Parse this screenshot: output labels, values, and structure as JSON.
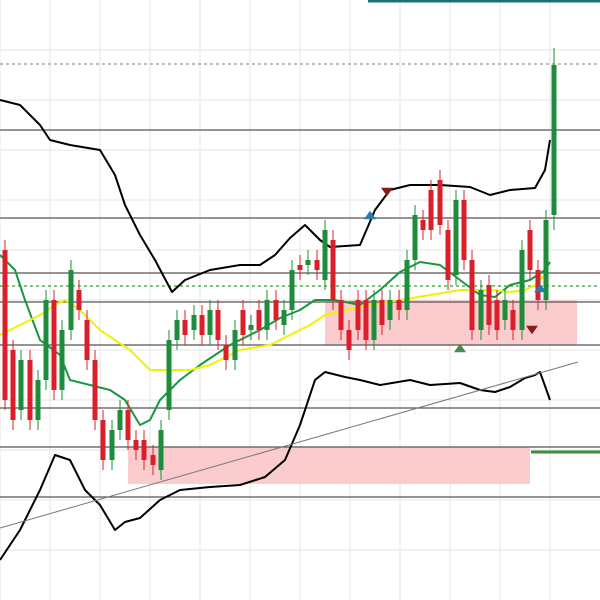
{
  "chart_data": {
    "type": "candlestick",
    "xlim": [
      0,
      600
    ],
    "ylim": [
      0,
      600
    ],
    "xticks": [
      0,
      50,
      100,
      150,
      200,
      250,
      300,
      350,
      400,
      450,
      500,
      550
    ],
    "yticks": [
      50,
      100,
      150,
      200,
      250,
      300,
      350,
      400,
      450,
      500,
      550
    ],
    "grid": true,
    "up_color": "#1e8c3a",
    "down_color": "#d9202a",
    "x": [
      5,
      13,
      21,
      30,
      38,
      46,
      54,
      62,
      71,
      79,
      87,
      95,
      103,
      112,
      120,
      128,
      136,
      144,
      153,
      161,
      169,
      177,
      185,
      194,
      202,
      210,
      218,
      226,
      235,
      243,
      251,
      259,
      267,
      276,
      284,
      292,
      300,
      308,
      317,
      325,
      333,
      341,
      349,
      358,
      366,
      374,
      382,
      390,
      399,
      407,
      415,
      423,
      431,
      440,
      448,
      456,
      464,
      472,
      481,
      489,
      497,
      505,
      513,
      522,
      530,
      538,
      546,
      554
    ],
    "open": [
      350,
      250,
      190,
      240,
      180,
      220,
      300,
      210,
      270,
      310,
      280,
      240,
      180,
      140,
      170,
      190,
      160,
      160,
      145,
      130,
      190,
      260,
      280,
      270,
      285,
      265,
      290,
      255,
      240,
      290,
      270,
      290,
      270,
      300,
      275,
      290,
      335,
      335,
      340,
      320,
      360,
      300,
      270,
      300,
      300,
      260,
      300,
      280,
      300,
      290,
      340,
      380,
      410,
      420,
      370,
      325,
      400,
      340,
      270,
      315,
      300,
      280,
      290,
      270,
      370,
      330,
      300,
      385
    ],
    "high": [
      360,
      260,
      250,
      250,
      230,
      310,
      310,
      280,
      340,
      320,
      290,
      250,
      190,
      180,
      200,
      200,
      170,
      170,
      155,
      180,
      270,
      290,
      290,
      295,
      295,
      300,
      300,
      265,
      280,
      300,
      285,
      300,
      310,
      310,
      300,
      340,
      345,
      350,
      350,
      380,
      370,
      310,
      280,
      310,
      310,
      310,
      310,
      310,
      310,
      350,
      395,
      390,
      420,
      430,
      380,
      410,
      410,
      350,
      320,
      325,
      310,
      310,
      300,
      360,
      380,
      340,
      390,
      552
    ],
    "low": [
      190,
      170,
      180,
      170,
      170,
      210,
      200,
      200,
      260,
      280,
      230,
      170,
      130,
      130,
      160,
      150,
      140,
      130,
      125,
      120,
      180,
      250,
      255,
      260,
      255,
      255,
      250,
      230,
      230,
      255,
      260,
      260,
      260,
      270,
      265,
      280,
      320,
      325,
      320,
      310,
      290,
      260,
      240,
      260,
      250,
      250,
      265,
      270,
      280,
      280,
      330,
      360,
      360,
      365,
      310,
      315,
      330,
      260,
      260,
      265,
      260,
      270,
      260,
      260,
      320,
      290,
      290,
      370
    ],
    "close": [
      200,
      180,
      240,
      180,
      220,
      300,
      210,
      270,
      330,
      290,
      240,
      180,
      140,
      170,
      190,
      160,
      150,
      140,
      135,
      170,
      260,
      280,
      265,
      285,
      265,
      290,
      260,
      240,
      270,
      265,
      275,
      270,
      300,
      280,
      290,
      330,
      330,
      340,
      330,
      370,
      300,
      270,
      250,
      270,
      260,
      300,
      275,
      300,
      290,
      340,
      385,
      370,
      370,
      375,
      320,
      400,
      340,
      270,
      310,
      275,
      270,
      300,
      270,
      350,
      330,
      300,
      380,
      535
    ],
    "zones": [
      {
        "x": [
          128,
          530
        ],
        "y": [
          116,
          153
        ],
        "color": "#f9c6c9"
      },
      {
        "x": [
          325,
          577
        ],
        "y": [
          255,
          300
        ],
        "color": "#f9c6c9"
      }
    ],
    "levels": [
      {
        "value": 536,
        "color": "#999999",
        "style": "dashed"
      },
      {
        "value": 470,
        "color": "#555555",
        "style": "solid"
      },
      {
        "value": 382,
        "color": "#555555",
        "style": "solid"
      },
      {
        "value": 327,
        "color": "#555555",
        "style": "solid"
      },
      {
        "value": 314,
        "color": "#2ca02c",
        "style": "dashed"
      },
      {
        "value": 298,
        "color": "#555555",
        "style": "solid"
      },
      {
        "value": 255,
        "color": "#555555",
        "style": "solid"
      },
      {
        "value": 192,
        "color": "#555555",
        "style": "solid"
      },
      {
        "value": 153,
        "color": "#555555",
        "style": "solid"
      },
      {
        "value": 103,
        "color": "#555555",
        "style": "solid"
      }
    ],
    "lines": [
      {
        "color": "#000000",
        "width": 2,
        "x": [
          0,
          20,
          40,
          50,
          70,
          100,
          115,
          125,
          140,
          155,
          172,
          185,
          210,
          240,
          260,
          275,
          290,
          305,
          320,
          330,
          360,
          375,
          390,
          410,
          440,
          470,
          490,
          510,
          535,
          545,
          550
        ],
        "values": [
          500,
          495,
          475,
          460,
          455,
          450,
          425,
          395,
          365,
          340,
          308,
          320,
          330,
          335,
          335,
          345,
          362,
          375,
          360,
          353,
          355,
          390,
          410,
          415,
          415,
          413,
          405,
          410,
          412,
          430,
          460
        ]
      },
      {
        "color": "#000000",
        "width": 2,
        "x": [
          0,
          20,
          40,
          55,
          70,
          85,
          100,
          115,
          125,
          140,
          160,
          180,
          210,
          240,
          265,
          285,
          300,
          315,
          325,
          345,
          360,
          380,
          410,
          430,
          460,
          480,
          495,
          510,
          525,
          535,
          540,
          550
        ],
        "values": [
          40,
          70,
          110,
          145,
          140,
          110,
          95,
          70,
          78,
          82,
          100,
          110,
          113,
          115,
          123,
          140,
          175,
          220,
          228,
          223,
          220,
          215,
          220,
          215,
          217,
          210,
          208,
          213,
          222,
          225,
          228,
          200
        ]
      },
      {
        "color": "#1a9641",
        "width": 2,
        "x": [
          0,
          15,
          25,
          40,
          60,
          70,
          90,
          110,
          125,
          140,
          150,
          160,
          180,
          200,
          230,
          260,
          280,
          300,
          315,
          335,
          360,
          380,
          400,
          420,
          440,
          460,
          480,
          495,
          510,
          530,
          545,
          550
        ],
        "values": [
          345,
          330,
          300,
          260,
          245,
          220,
          215,
          210,
          200,
          175,
          180,
          200,
          220,
          235,
          255,
          270,
          282,
          290,
          300,
          300,
          295,
          310,
          328,
          338,
          335,
          320,
          305,
          303,
          315,
          320,
          330,
          338
        ]
      },
      {
        "color": "#f2f200",
        "width": 2,
        "x": [
          0,
          20,
          40,
          55,
          65,
          80,
          100,
          130,
          150,
          170,
          190,
          210,
          240,
          270,
          290,
          310,
          325,
          345,
          370,
          400,
          430,
          460,
          490,
          510,
          525,
          535,
          545
        ],
        "values": [
          265,
          275,
          285,
          295,
          300,
          290,
          270,
          250,
          230,
          230,
          230,
          235,
          250,
          255,
          265,
          275,
          285,
          290,
          295,
          300,
          305,
          310,
          310,
          308,
          310,
          315,
          325
        ]
      },
      {
        "color": "#777777",
        "width": 1,
        "x": [
          0,
          578
        ],
        "values": [
          72,
          238
        ]
      },
      {
        "color": "#3a8f3a",
        "width": 3,
        "x": [
          531,
          600
        ],
        "values": [
          148,
          148
        ]
      },
      {
        "color": "#1a6f7a",
        "width": 3,
        "x": [
          368,
          600
        ],
        "values": [
          599,
          599
        ]
      }
    ],
    "markers": [
      {
        "x": 370,
        "value": 385,
        "shape": "up",
        "color": "#2a7ab0"
      },
      {
        "x": 387,
        "value": 408,
        "shape": "down",
        "color": "#8b1a1a"
      },
      {
        "x": 460,
        "value": 252,
        "shape": "up",
        "color": "#4a8a4a"
      },
      {
        "x": 540,
        "value": 312,
        "shape": "up",
        "color": "#2a7ab0"
      },
      {
        "x": 532,
        "value": 270,
        "shape": "down",
        "color": "#8b1a1a"
      }
    ]
  }
}
